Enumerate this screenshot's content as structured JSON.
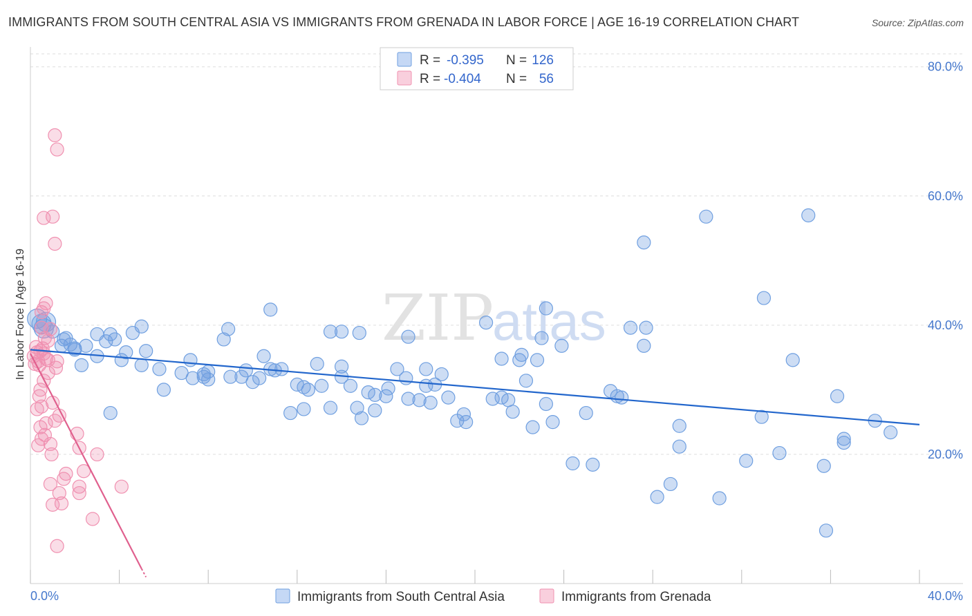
{
  "title": "IMMIGRANTS FROM SOUTH CENTRAL ASIA VS IMMIGRANTS FROM GRENADA IN LABOR FORCE | AGE 16-19 CORRELATION CHART",
  "source": "Source: ZipAtlas.com",
  "watermark": {
    "zip": "ZIP",
    "atlas": "atlas"
  },
  "colors": {
    "blue": "#6f9fe0",
    "blue_line": "#2266cc",
    "pink": "#f090b0",
    "pink_line": "#e0608e",
    "tick": "#4477cc",
    "grid": "#dddddd"
  },
  "chart_data": {
    "type": "scatter",
    "xlabel": "",
    "ylabel": "In Labor Force | Age 16-19",
    "xlim": [
      0,
      40
    ],
    "ylim": [
      0,
      82
    ],
    "x_tick_labels": [
      "0.0%",
      "40.0%"
    ],
    "y_ticks": [
      20,
      40,
      60,
      80
    ],
    "y_tick_labels": [
      "20.0%",
      "40.0%",
      "60.0%",
      "80.0%"
    ],
    "grid": true,
    "legend": {
      "placement": "top-center",
      "entries": [
        {
          "r_label": "R =",
          "r_value": "-0.395",
          "n_label": "N =",
          "n_value": "126"
        },
        {
          "r_label": "R =",
          "r_value": "-0.404",
          "n_label": "N =",
          "n_value": "56"
        }
      ]
    },
    "bottom_legend": [
      "Immigrants from South Central Asia",
      "Immigrants from Grenada"
    ],
    "series": [
      {
        "name": "Immigrants from South Central Asia",
        "color": "#6f9fe0",
        "trend": {
          "x": [
            0,
            40
          ],
          "y": [
            36.2,
            24.6
          ]
        },
        "points": [
          [
            0.3,
            41.0
          ],
          [
            0.5,
            40.2
          ],
          [
            0.6,
            39.5
          ],
          [
            0.7,
            40.5
          ],
          [
            1.0,
            39.0
          ],
          [
            1.4,
            36.8
          ],
          [
            1.6,
            38.0
          ],
          [
            1.8,
            37.0
          ],
          [
            2.0,
            36.2
          ],
          [
            2.5,
            36.8
          ],
          [
            2.3,
            33.8
          ],
          [
            3.0,
            38.6
          ],
          [
            3.6,
            38.6
          ],
          [
            3.4,
            37.5
          ],
          [
            3.8,
            37.8
          ],
          [
            3.0,
            35.2
          ],
          [
            4.3,
            35.8
          ],
          [
            4.6,
            38.8
          ],
          [
            5.0,
            39.8
          ],
          [
            4.1,
            34.6
          ],
          [
            5.2,
            36.0
          ],
          [
            5.8,
            33.2
          ],
          [
            5.0,
            33.8
          ],
          [
            6.0,
            30.0
          ],
          [
            7.2,
            34.6
          ],
          [
            7.3,
            31.8
          ],
          [
            6.8,
            32.6
          ],
          [
            7.8,
            32.0
          ],
          [
            8.7,
            37.8
          ],
          [
            8.9,
            39.4
          ],
          [
            8.0,
            31.6
          ],
          [
            9.5,
            32.0
          ],
          [
            9.7,
            33.0
          ],
          [
            10.5,
            35.2
          ],
          [
            10.0,
            31.2
          ],
          [
            10.8,
            33.2
          ],
          [
            11.0,
            33.0
          ],
          [
            11.3,
            33.2
          ],
          [
            10.8,
            42.4
          ],
          [
            12.0,
            30.8
          ],
          [
            11.7,
            26.4
          ],
          [
            12.3,
            27.0
          ],
          [
            12.5,
            30.0
          ],
          [
            12.9,
            34.0
          ],
          [
            13.1,
            30.6
          ],
          [
            13.5,
            27.2
          ],
          [
            13.5,
            39.0
          ],
          [
            14.0,
            33.6
          ],
          [
            14.0,
            32.0
          ],
          [
            14.4,
            30.6
          ],
          [
            14.7,
            27.2
          ],
          [
            14.9,
            25.6
          ],
          [
            14.8,
            38.8
          ],
          [
            15.2,
            29.6
          ],
          [
            15.5,
            29.2
          ],
          [
            15.5,
            26.8
          ],
          [
            16.1,
            30.2
          ],
          [
            16.5,
            33.2
          ],
          [
            16.0,
            29.0
          ],
          [
            16.9,
            31.8
          ],
          [
            17.0,
            28.6
          ],
          [
            17.5,
            28.4
          ],
          [
            17.8,
            30.6
          ],
          [
            18.0,
            28.0
          ],
          [
            18.5,
            32.4
          ],
          [
            18.8,
            28.8
          ],
          [
            18.2,
            30.8
          ],
          [
            19.2,
            25.2
          ],
          [
            19.5,
            26.2
          ],
          [
            19.6,
            25.0
          ],
          [
            20.5,
            40.4
          ],
          [
            20.8,
            28.6
          ],
          [
            21.2,
            28.8
          ],
          [
            21.5,
            28.4
          ],
          [
            21.7,
            26.6
          ],
          [
            22.0,
            34.6
          ],
          [
            22.3,
            31.4
          ],
          [
            22.1,
            35.4
          ],
          [
            22.6,
            24.2
          ],
          [
            22.8,
            34.6
          ],
          [
            23.0,
            38.0
          ],
          [
            23.2,
            27.8
          ],
          [
            23.5,
            25.0
          ],
          [
            23.9,
            36.8
          ],
          [
            23.2,
            42.6
          ],
          [
            24.4,
            18.6
          ],
          [
            25.0,
            26.4
          ],
          [
            25.3,
            18.4
          ],
          [
            26.1,
            29.8
          ],
          [
            26.4,
            29.0
          ],
          [
            26.6,
            28.8
          ],
          [
            27.0,
            39.6
          ],
          [
            27.6,
            36.8
          ],
          [
            27.7,
            39.6
          ],
          [
            27.6,
            52.8
          ],
          [
            28.2,
            13.4
          ],
          [
            28.8,
            15.4
          ],
          [
            29.2,
            21.2
          ],
          [
            29.2,
            24.4
          ],
          [
            30.4,
            56.8
          ],
          [
            31.0,
            13.2
          ],
          [
            32.2,
            19.0
          ],
          [
            32.9,
            25.8
          ],
          [
            33.0,
            44.2
          ],
          [
            33.7,
            20.2
          ],
          [
            34.3,
            34.6
          ],
          [
            35.7,
            18.2
          ],
          [
            35.8,
            8.2
          ],
          [
            36.3,
            29.0
          ],
          [
            36.6,
            22.4
          ],
          [
            36.6,
            21.8
          ],
          [
            38.0,
            25.2
          ],
          [
            38.7,
            23.4
          ],
          [
            35.0,
            57.0
          ],
          [
            14.0,
            39.0
          ],
          [
            17.8,
            33.2
          ],
          [
            12.3,
            30.4
          ],
          [
            9.0,
            32.0
          ],
          [
            8.0,
            32.8
          ],
          [
            21.2,
            34.8
          ],
          [
            2.0,
            36.4
          ],
          [
            1.5,
            37.8
          ],
          [
            3.6,
            26.4
          ],
          [
            7.8,
            32.4
          ],
          [
            10.3,
            31.8
          ],
          [
            17.0,
            38.2
          ]
        ]
      },
      {
        "name": "Immigrants from Grenada",
        "color": "#f090b0",
        "trend": {
          "x": [
            0,
            5.2
          ],
          "y": [
            35.6,
            1.0
          ]
        },
        "points": [
          [
            0.15,
            35.2
          ],
          [
            0.2,
            34.0
          ],
          [
            0.25,
            36.6
          ],
          [
            0.3,
            35.8
          ],
          [
            0.35,
            34.4
          ],
          [
            0.4,
            33.8
          ],
          [
            0.45,
            36.0
          ],
          [
            0.55,
            36.4
          ],
          [
            0.5,
            42.0
          ],
          [
            0.6,
            42.6
          ],
          [
            0.7,
            43.4
          ],
          [
            0.65,
            38.0
          ],
          [
            0.8,
            37.6
          ],
          [
            0.5,
            39.6
          ],
          [
            0.6,
            35.6
          ],
          [
            0.7,
            34.8
          ],
          [
            0.9,
            39.4
          ],
          [
            0.8,
            34.6
          ],
          [
            0.3,
            27.0
          ],
          [
            0.4,
            29.0
          ],
          [
            0.5,
            27.4
          ],
          [
            0.6,
            31.4
          ],
          [
            0.7,
            24.8
          ],
          [
            0.45,
            24.2
          ],
          [
            0.35,
            21.4
          ],
          [
            0.5,
            22.4
          ],
          [
            0.65,
            23.0
          ],
          [
            0.8,
            32.6
          ],
          [
            1.0,
            28.0
          ],
          [
            1.2,
            34.4
          ],
          [
            1.1,
            25.2
          ],
          [
            1.3,
            26.0
          ],
          [
            0.95,
            20.0
          ],
          [
            0.9,
            21.6
          ],
          [
            0.6,
            56.6
          ],
          [
            1.0,
            56.8
          ],
          [
            1.1,
            52.6
          ],
          [
            1.1,
            69.4
          ],
          [
            1.2,
            67.2
          ],
          [
            1.15,
            33.4
          ],
          [
            1.6,
            17.0
          ],
          [
            1.5,
            16.2
          ],
          [
            1.3,
            14.0
          ],
          [
            1.4,
            12.4
          ],
          [
            1.0,
            12.2
          ],
          [
            0.9,
            15.4
          ],
          [
            2.1,
            23.2
          ],
          [
            2.2,
            21.0
          ],
          [
            2.4,
            17.4
          ],
          [
            2.2,
            15.0
          ],
          [
            2.2,
            14.0
          ],
          [
            2.8,
            10.0
          ],
          [
            3.0,
            20.0
          ],
          [
            4.1,
            15.0
          ],
          [
            1.2,
            5.8
          ],
          [
            0.45,
            30.0
          ]
        ]
      }
    ]
  }
}
